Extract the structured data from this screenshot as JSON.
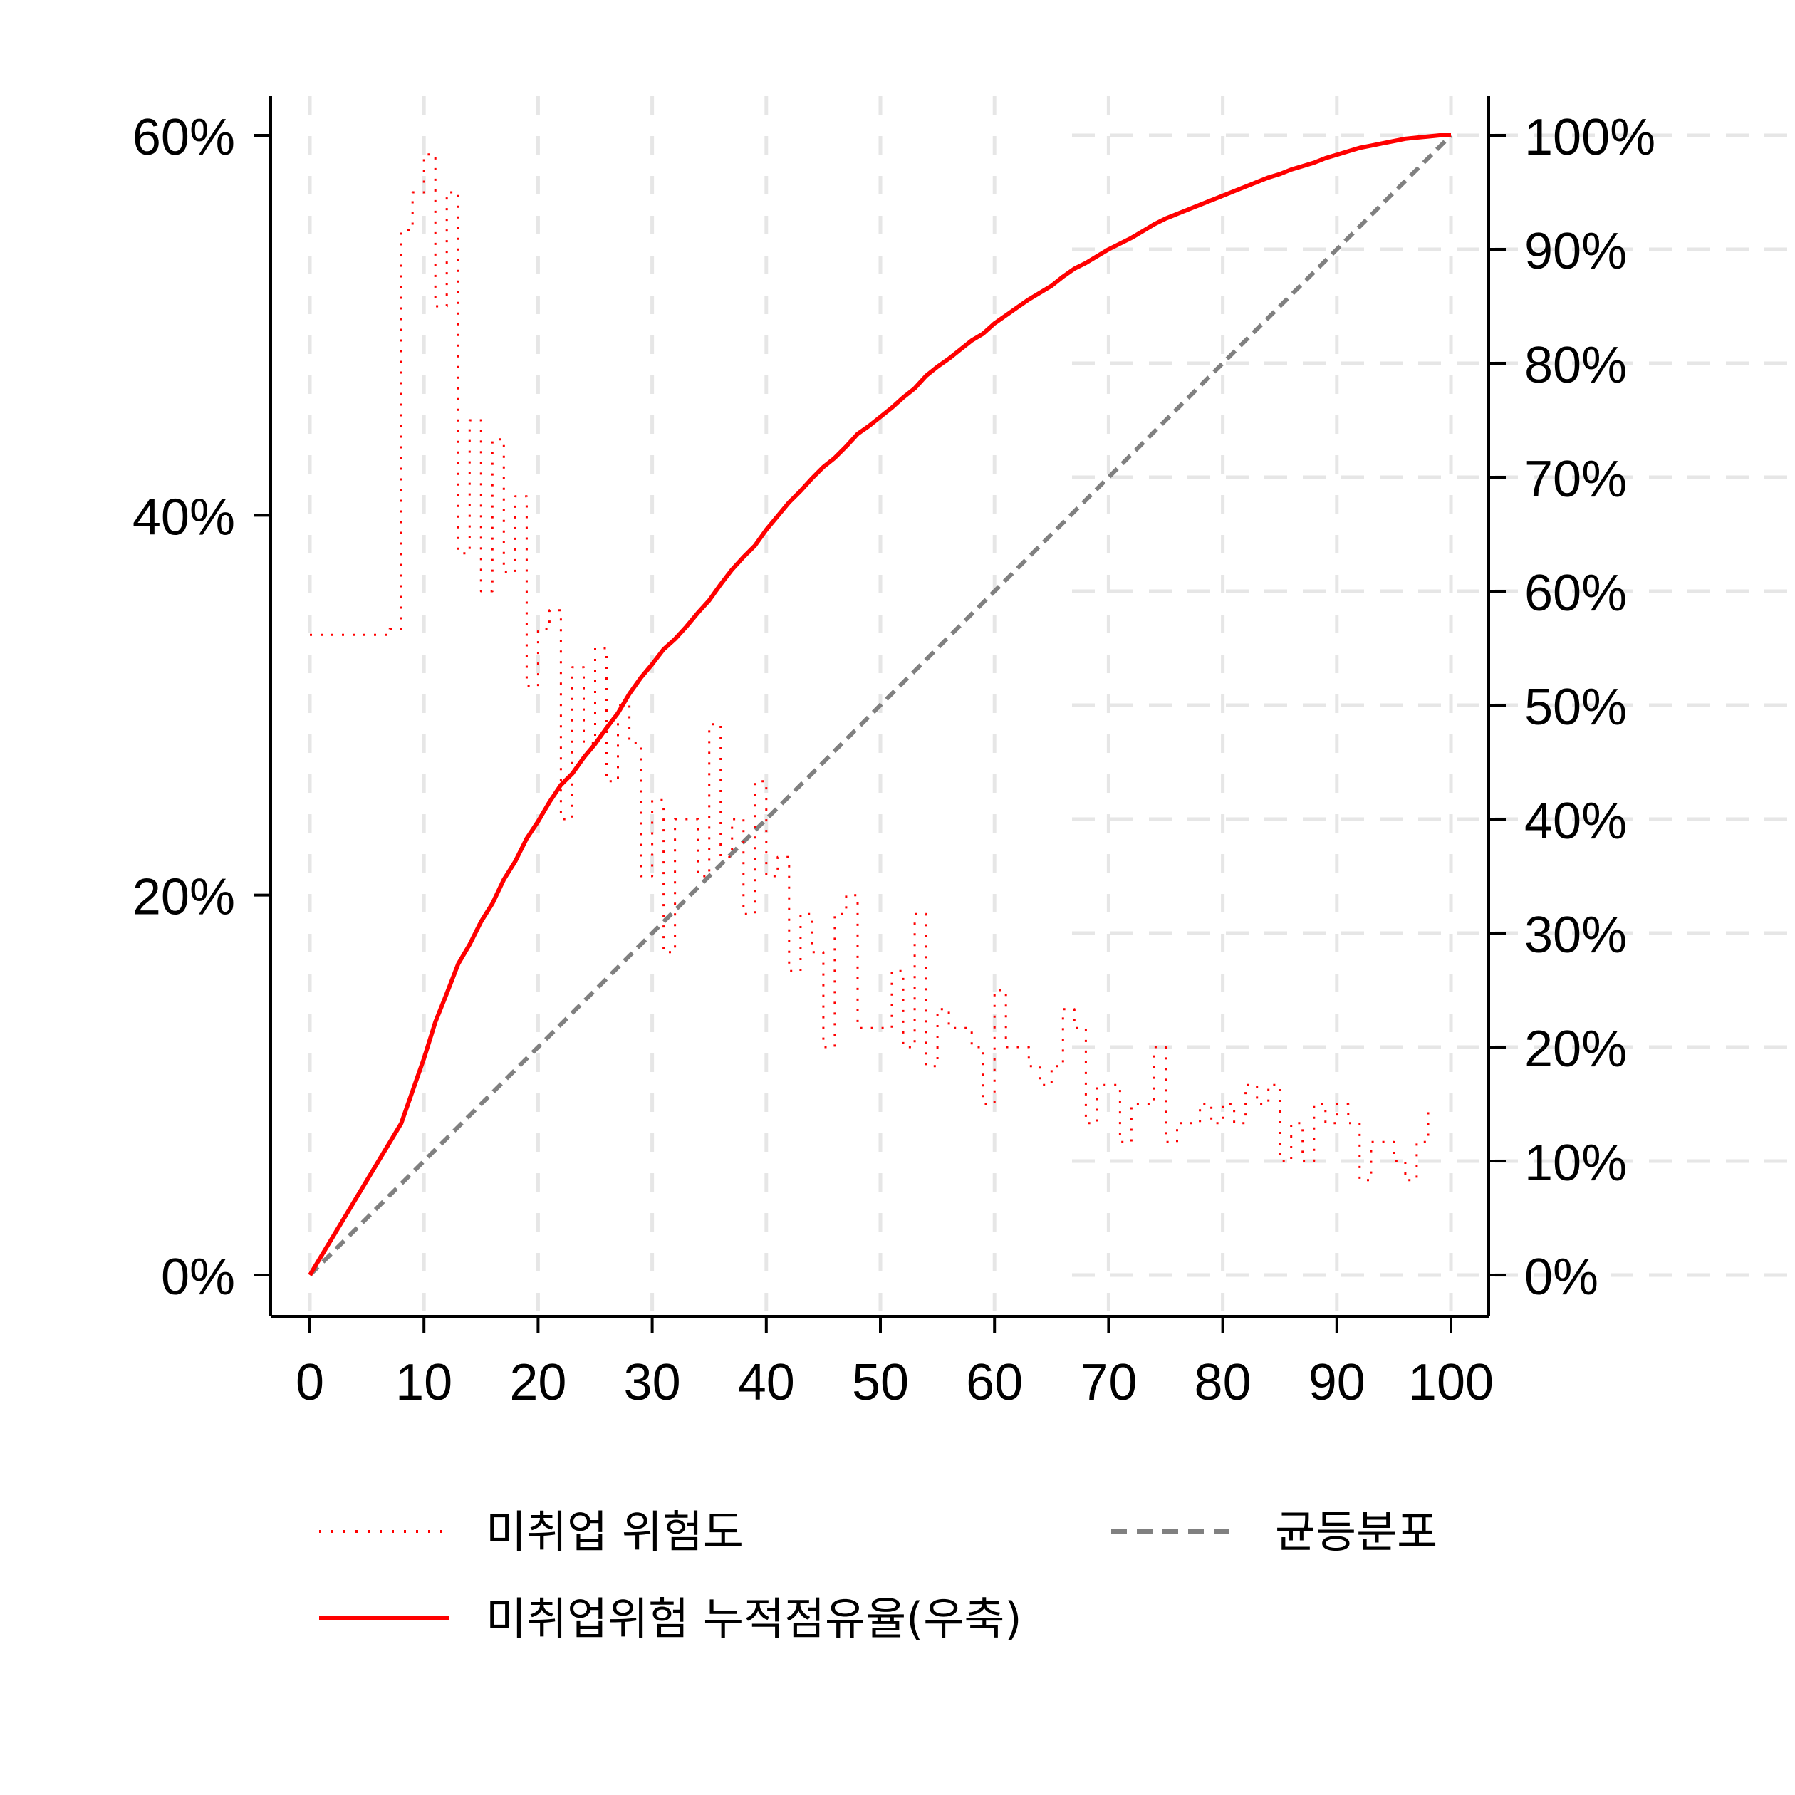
{
  "chart_data": {
    "type": "line",
    "title": "",
    "xlabel": "",
    "ylabel": "",
    "xlim": [
      0,
      100
    ],
    "ylim_left": [
      0,
      0.6
    ],
    "ylim_right": [
      0,
      1.0
    ],
    "x_ticks": [
      "0",
      "10",
      "20",
      "30",
      "40",
      "50",
      "60",
      "70",
      "80",
      "90",
      "100"
    ],
    "y_left_ticks": [
      "0%",
      "20%",
      "40%",
      "60%"
    ],
    "y_right_ticks": [
      "0%",
      "10%",
      "20%",
      "30%",
      "40%",
      "50%",
      "60%",
      "70%",
      "80%",
      "90%",
      "100%"
    ],
    "grid": true,
    "legend_position": "bottom",
    "series": [
      {
        "name": "미취업 위험도",
        "axis": "left",
        "style": "dotted",
        "color": "#ff0000",
        "x": [
          0,
          1,
          2,
          3,
          4,
          5,
          6,
          7,
          8,
          9,
          10,
          11,
          12,
          13,
          14,
          15,
          16,
          17,
          18,
          19,
          20,
          21,
          22,
          23,
          24,
          25,
          26,
          27,
          28,
          29,
          30,
          31,
          32,
          33,
          34,
          35,
          36,
          37,
          38,
          39,
          40,
          41,
          42,
          43,
          44,
          45,
          46,
          47,
          48,
          49,
          50,
          51,
          52,
          53,
          54,
          55,
          56,
          57,
          58,
          59,
          60,
          61,
          62,
          63,
          64,
          65,
          66,
          67,
          68,
          69,
          70,
          71,
          72,
          73,
          74,
          75,
          76,
          77,
          78,
          79,
          80,
          81,
          82,
          83,
          84,
          85,
          86,
          87,
          88,
          89,
          90,
          91,
          92,
          93,
          94,
          95,
          96,
          97,
          98
        ],
        "y": [
          0.337,
          0.337,
          0.337,
          0.337,
          0.337,
          0.337,
          0.337,
          0.34,
          0.55,
          0.57,
          0.59,
          0.51,
          0.57,
          0.38,
          0.45,
          0.36,
          0.44,
          0.37,
          0.41,
          0.31,
          0.34,
          0.35,
          0.24,
          0.32,
          0.28,
          0.33,
          0.26,
          0.3,
          0.28,
          0.21,
          0.25,
          0.17,
          0.24,
          0.24,
          0.21,
          0.29,
          0.22,
          0.24,
          0.19,
          0.26,
          0.21,
          0.22,
          0.16,
          0.19,
          0.17,
          0.12,
          0.19,
          0.2,
          0.13,
          0.13,
          0.13,
          0.16,
          0.12,
          0.19,
          0.11,
          0.14,
          0.13,
          0.13,
          0.12,
          0.09,
          0.15,
          0.12,
          0.12,
          0.11,
          0.1,
          0.11,
          0.14,
          0.13,
          0.08,
          0.1,
          0.1,
          0.07,
          0.09,
          0.09,
          0.12,
          0.07,
          0.08,
          0.08,
          0.09,
          0.08,
          0.09,
          0.08,
          0.1,
          0.09,
          0.1,
          0.06,
          0.08,
          0.06,
          0.09,
          0.08,
          0.09,
          0.08,
          0.05,
          0.07,
          0.07,
          0.06,
          0.05,
          0.07,
          0.09
        ]
      },
      {
        "name": "미취업위험 누적점유율(우축)",
        "axis": "right",
        "style": "solid",
        "color": "#ff0000",
        "x": [
          0,
          8,
          10,
          11,
          12,
          13,
          14,
          15,
          16,
          17,
          18,
          19,
          20,
          21,
          22,
          23,
          24,
          25,
          26,
          27,
          28,
          29,
          30,
          31,
          32,
          33,
          34,
          35,
          36,
          37,
          38,
          39,
          40,
          41,
          42,
          43,
          44,
          45,
          46,
          47,
          48,
          49,
          50,
          51,
          52,
          53,
          54,
          55,
          56,
          57,
          58,
          59,
          60,
          61,
          62,
          63,
          64,
          65,
          66,
          67,
          68,
          69,
          70,
          71,
          72,
          73,
          74,
          75,
          76,
          77,
          78,
          79,
          80,
          81,
          82,
          83,
          84,
          85,
          86,
          87,
          88,
          89,
          90,
          91,
          92,
          93,
          94,
          95,
          96,
          97,
          98,
          99,
          100
        ],
        "y": [
          0,
          0.133,
          0.19,
          0.222,
          0.247,
          0.273,
          0.29,
          0.31,
          0.326,
          0.347,
          0.363,
          0.383,
          0.398,
          0.415,
          0.43,
          0.44,
          0.454,
          0.466,
          0.48,
          0.493,
          0.51,
          0.524,
          0.536,
          0.549,
          0.558,
          0.569,
          0.581,
          0.592,
          0.606,
          0.619,
          0.63,
          0.64,
          0.654,
          0.666,
          0.678,
          0.688,
          0.699,
          0.709,
          0.717,
          0.727,
          0.738,
          0.745,
          0.753,
          0.761,
          0.77,
          0.778,
          0.789,
          0.797,
          0.804,
          0.812,
          0.82,
          0.826,
          0.835,
          0.842,
          0.849,
          0.856,
          0.862,
          0.868,
          0.876,
          0.883,
          0.888,
          0.894,
          0.9,
          0.905,
          0.91,
          0.916,
          0.922,
          0.927,
          0.931,
          0.935,
          0.939,
          0.943,
          0.947,
          0.951,
          0.955,
          0.959,
          0.963,
          0.966,
          0.97,
          0.973,
          0.976,
          0.98,
          0.983,
          0.986,
          0.989,
          0.991,
          0.993,
          0.995,
          0.997,
          0.998,
          0.999,
          1.0,
          1.0
        ]
      },
      {
        "name": "균등분포",
        "axis": "right",
        "style": "dashed",
        "color": "#808080",
        "x": [
          0,
          100
        ],
        "y": [
          0,
          1.0
        ]
      }
    ]
  }
}
